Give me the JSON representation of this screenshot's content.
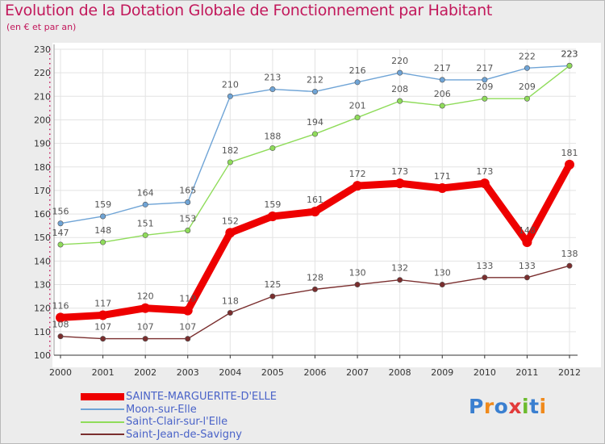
{
  "title": "Evolution de la Dotation Globale de Fonctionnement par Habitant",
  "subtitle": "(en € et par an)",
  "logo_text": "Proxiti",
  "chart_data": {
    "type": "line",
    "title": "Evolution de la Dotation Globale de Fonctionnement par Habitant",
    "subtitle": "(en € et par an)",
    "xlabel": "",
    "ylabel": "",
    "x": [
      "2000",
      "2001",
      "2002",
      "2003",
      "2004",
      "2005",
      "2006",
      "2007",
      "2008",
      "2009",
      "2010",
      "2011",
      "2012"
    ],
    "ylim": [
      100,
      230
    ],
    "yticks": [
      100,
      110,
      120,
      130,
      140,
      150,
      160,
      170,
      180,
      190,
      200,
      210,
      220,
      230
    ],
    "grid": true,
    "legend_position": "bottom-left",
    "series": [
      {
        "name": "SAINTE-MARGUERITE-D'ELLE",
        "color": "#ee0000",
        "values": [
          116,
          117,
          120,
          119,
          152,
          159,
          161,
          172,
          173,
          171,
          173,
          148,
          181
        ]
      },
      {
        "name": "Moon-sur-Elle",
        "color": "#6fa4d6",
        "values": [
          156,
          159,
          164,
          165,
          210,
          213,
          212,
          216,
          220,
          217,
          217,
          222,
          223
        ]
      },
      {
        "name": "Saint-Clair-sur-l'Elle",
        "color": "#8fdc5a",
        "values": [
          147,
          148,
          151,
          153,
          182,
          188,
          194,
          201,
          208,
          206,
          209,
          209,
          223
        ]
      },
      {
        "name": "Saint-Jean-de-Savigny",
        "color": "#7a2e2e",
        "values": [
          108,
          107,
          107,
          107,
          118,
          125,
          128,
          130,
          132,
          130,
          133,
          133,
          138
        ]
      }
    ]
  }
}
